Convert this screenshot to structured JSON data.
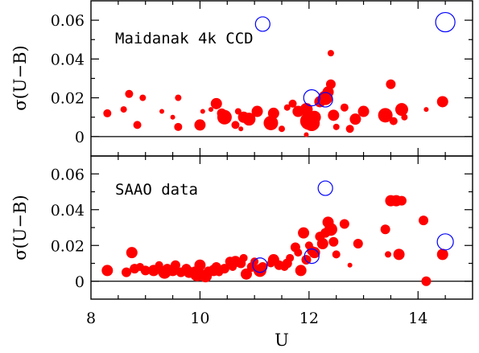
{
  "chart_data": {
    "type": "scatter",
    "xlabel": "U",
    "ylabel": "σ(U−B)",
    "xlim": [
      8,
      15
    ],
    "ylim": [
      -0.01,
      0.07
    ],
    "xticks": [
      "8",
      "10",
      "12",
      "14"
    ],
    "yticks": [
      "0",
      "0.02",
      "0.04",
      "0.06"
    ],
    "colors": {
      "filled": "#ff0000",
      "open": "#0000ff"
    },
    "panels": [
      {
        "label": "Maidanak 4k CCD",
        "filled_points": [
          {
            "x": 8.3,
            "y": 0.012,
            "s": 5
          },
          {
            "x": 8.6,
            "y": 0.014,
            "s": 4
          },
          {
            "x": 8.7,
            "y": 0.022,
            "s": 5
          },
          {
            "x": 8.85,
            "y": 0.006,
            "s": 5
          },
          {
            "x": 8.95,
            "y": 0.02,
            "s": 4
          },
          {
            "x": 9.3,
            "y": 0.013,
            "s": 3
          },
          {
            "x": 9.5,
            "y": 0.01,
            "s": 3
          },
          {
            "x": 9.6,
            "y": 0.005,
            "s": 5
          },
          {
            "x": 9.6,
            "y": 0.02,
            "s": 4
          },
          {
            "x": 10.0,
            "y": 0.006,
            "s": 7
          },
          {
            "x": 10.05,
            "y": 0.013,
            "s": 3
          },
          {
            "x": 10.2,
            "y": 0.014,
            "s": 3
          },
          {
            "x": 10.3,
            "y": 0.017,
            "s": 7
          },
          {
            "x": 10.4,
            "y": 0.012,
            "s": 6
          },
          {
            "x": 10.45,
            "y": 0.01,
            "s": 9
          },
          {
            "x": 10.65,
            "y": 0.006,
            "s": 5
          },
          {
            "x": 10.7,
            "y": 0.013,
            "s": 4
          },
          {
            "x": 10.75,
            "y": 0.004,
            "s": 3
          },
          {
            "x": 10.8,
            "y": 0.01,
            "s": 7
          },
          {
            "x": 10.9,
            "y": 0.009,
            "s": 8
          },
          {
            "x": 11.05,
            "y": 0.013,
            "s": 7
          },
          {
            "x": 11.3,
            "y": 0.007,
            "s": 9
          },
          {
            "x": 11.35,
            "y": 0.012,
            "s": 7
          },
          {
            "x": 11.5,
            "y": 0.004,
            "s": 4
          },
          {
            "x": 11.6,
            "y": 0.015,
            "s": 4
          },
          {
            "x": 11.7,
            "y": 0.017,
            "s": 5
          },
          {
            "x": 11.8,
            "y": 0.013,
            "s": 7
          },
          {
            "x": 11.95,
            "y": 0.014,
            "s": 8
          },
          {
            "x": 11.95,
            "y": 0.001,
            "s": 3
          },
          {
            "x": 12.0,
            "y": 0.008,
            "s": 11
          },
          {
            "x": 12.05,
            "y": 0.007,
            "s": 10
          },
          {
            "x": 12.1,
            "y": 0.01,
            "s": 8
          },
          {
            "x": 12.2,
            "y": 0.018,
            "s": 7
          },
          {
            "x": 12.3,
            "y": 0.02,
            "s": 9
          },
          {
            "x": 12.35,
            "y": 0.023,
            "s": 7
          },
          {
            "x": 12.4,
            "y": 0.027,
            "s": 6
          },
          {
            "x": 12.4,
            "y": 0.043,
            "s": 4
          },
          {
            "x": 12.45,
            "y": 0.011,
            "s": 7
          },
          {
            "x": 12.5,
            "y": 0.005,
            "s": 4
          },
          {
            "x": 12.65,
            "y": 0.015,
            "s": 5
          },
          {
            "x": 12.75,
            "y": 0.004,
            "s": 5
          },
          {
            "x": 12.85,
            "y": 0.009,
            "s": 7
          },
          {
            "x": 13.0,
            "y": 0.013,
            "s": 7
          },
          {
            "x": 13.4,
            "y": 0.011,
            "s": 9
          },
          {
            "x": 13.5,
            "y": 0.027,
            "s": 6
          },
          {
            "x": 13.55,
            "y": 0.008,
            "s": 5
          },
          {
            "x": 13.7,
            "y": 0.014,
            "s": 8
          },
          {
            "x": 13.75,
            "y": 0.01,
            "s": 4
          },
          {
            "x": 14.15,
            "y": 0.014,
            "s": 3
          },
          {
            "x": 14.45,
            "y": 0.018,
            "s": 7
          }
        ],
        "open_points": [
          {
            "x": 11.15,
            "y": 0.058,
            "s": 9
          },
          {
            "x": 12.05,
            "y": 0.02,
            "s": 10
          },
          {
            "x": 12.3,
            "y": 0.019,
            "s": 9
          },
          {
            "x": 14.5,
            "y": 0.059,
            "s": 12
          }
        ]
      },
      {
        "label": "SAAO data",
        "filled_points": [
          {
            "x": 8.3,
            "y": 0.006,
            "s": 7
          },
          {
            "x": 8.65,
            "y": 0.005,
            "s": 6
          },
          {
            "x": 8.75,
            "y": 0.016,
            "s": 7
          },
          {
            "x": 8.8,
            "y": 0.007,
            "s": 6
          },
          {
            "x": 8.9,
            "y": 0.008,
            "s": 5
          },
          {
            "x": 9.0,
            "y": 0.006,
            "s": 6
          },
          {
            "x": 9.15,
            "y": 0.006,
            "s": 7
          },
          {
            "x": 9.25,
            "y": 0.009,
            "s": 5
          },
          {
            "x": 9.35,
            "y": 0.005,
            "s": 8
          },
          {
            "x": 9.4,
            "y": 0.007,
            "s": 6
          },
          {
            "x": 9.5,
            "y": 0.006,
            "s": 7
          },
          {
            "x": 9.55,
            "y": 0.009,
            "s": 6
          },
          {
            "x": 9.65,
            "y": 0.005,
            "s": 6
          },
          {
            "x": 9.75,
            "y": 0.007,
            "s": 6
          },
          {
            "x": 9.8,
            "y": 0.005,
            "s": 7
          },
          {
            "x": 9.9,
            "y": 0.006,
            "s": 5
          },
          {
            "x": 9.95,
            "y": 0.004,
            "s": 9
          },
          {
            "x": 10.0,
            "y": 0.009,
            "s": 7
          },
          {
            "x": 10.1,
            "y": 0.003,
            "s": 8
          },
          {
            "x": 10.15,
            "y": 0.006,
            "s": 5
          },
          {
            "x": 10.25,
            "y": 0.006,
            "s": 7
          },
          {
            "x": 10.3,
            "y": 0.008,
            "s": 6
          },
          {
            "x": 10.35,
            "y": 0.005,
            "s": 5
          },
          {
            "x": 10.45,
            "y": 0.007,
            "s": 6
          },
          {
            "x": 10.55,
            "y": 0.011,
            "s": 6
          },
          {
            "x": 10.6,
            "y": 0.008,
            "s": 5
          },
          {
            "x": 10.65,
            "y": 0.011,
            "s": 7
          },
          {
            "x": 10.75,
            "y": 0.01,
            "s": 6
          },
          {
            "x": 10.8,
            "y": 0.013,
            "s": 5
          },
          {
            "x": 10.85,
            "y": 0.004,
            "s": 7
          },
          {
            "x": 10.95,
            "y": 0.008,
            "s": 6
          },
          {
            "x": 11.0,
            "y": 0.011,
            "s": 5
          },
          {
            "x": 11.1,
            "y": 0.006,
            "s": 8
          },
          {
            "x": 11.15,
            "y": 0.008,
            "s": 6
          },
          {
            "x": 11.3,
            "y": 0.01,
            "s": 5
          },
          {
            "x": 11.35,
            "y": 0.012,
            "s": 7
          },
          {
            "x": 11.45,
            "y": 0.009,
            "s": 6
          },
          {
            "x": 11.55,
            "y": 0.008,
            "s": 5
          },
          {
            "x": 11.6,
            "y": 0.01,
            "s": 6
          },
          {
            "x": 11.65,
            "y": 0.013,
            "s": 5
          },
          {
            "x": 11.75,
            "y": 0.019,
            "s": 6
          },
          {
            "x": 11.8,
            "y": 0.016,
            "s": 5
          },
          {
            "x": 11.85,
            "y": 0.006,
            "s": 7
          },
          {
            "x": 11.9,
            "y": 0.027,
            "s": 7
          },
          {
            "x": 11.95,
            "y": 0.012,
            "s": 6
          },
          {
            "x": 12.0,
            "y": 0.02,
            "s": 5
          },
          {
            "x": 12.05,
            "y": 0.017,
            "s": 6
          },
          {
            "x": 12.1,
            "y": 0.016,
            "s": 7
          },
          {
            "x": 12.2,
            "y": 0.025,
            "s": 6
          },
          {
            "x": 12.25,
            "y": 0.021,
            "s": 7
          },
          {
            "x": 12.3,
            "y": 0.027,
            "s": 6
          },
          {
            "x": 12.35,
            "y": 0.033,
            "s": 7
          },
          {
            "x": 12.4,
            "y": 0.029,
            "s": 8
          },
          {
            "x": 12.45,
            "y": 0.022,
            "s": 6
          },
          {
            "x": 12.5,
            "y": 0.015,
            "s": 5
          },
          {
            "x": 12.65,
            "y": 0.032,
            "s": 6
          },
          {
            "x": 12.75,
            "y": 0.009,
            "s": 3
          },
          {
            "x": 12.9,
            "y": 0.021,
            "s": 6
          },
          {
            "x": 13.4,
            "y": 0.029,
            "s": 6
          },
          {
            "x": 13.45,
            "y": 0.015,
            "s": 4
          },
          {
            "x": 13.5,
            "y": 0.045,
            "s": 7
          },
          {
            "x": 13.6,
            "y": 0.045,
            "s": 7
          },
          {
            "x": 13.65,
            "y": 0.015,
            "s": 7
          },
          {
            "x": 13.7,
            "y": 0.045,
            "s": 6
          },
          {
            "x": 14.1,
            "y": 0.034,
            "s": 6
          },
          {
            "x": 14.15,
            "y": 0.0,
            "s": 6
          },
          {
            "x": 14.45,
            "y": 0.015,
            "s": 7
          }
        ],
        "open_points": [
          {
            "x": 11.1,
            "y": 0.009,
            "s": 9
          },
          {
            "x": 12.05,
            "y": 0.014,
            "s": 9
          },
          {
            "x": 12.3,
            "y": 0.052,
            "s": 9
          },
          {
            "x": 14.5,
            "y": 0.022,
            "s": 10
          }
        ]
      }
    ]
  }
}
